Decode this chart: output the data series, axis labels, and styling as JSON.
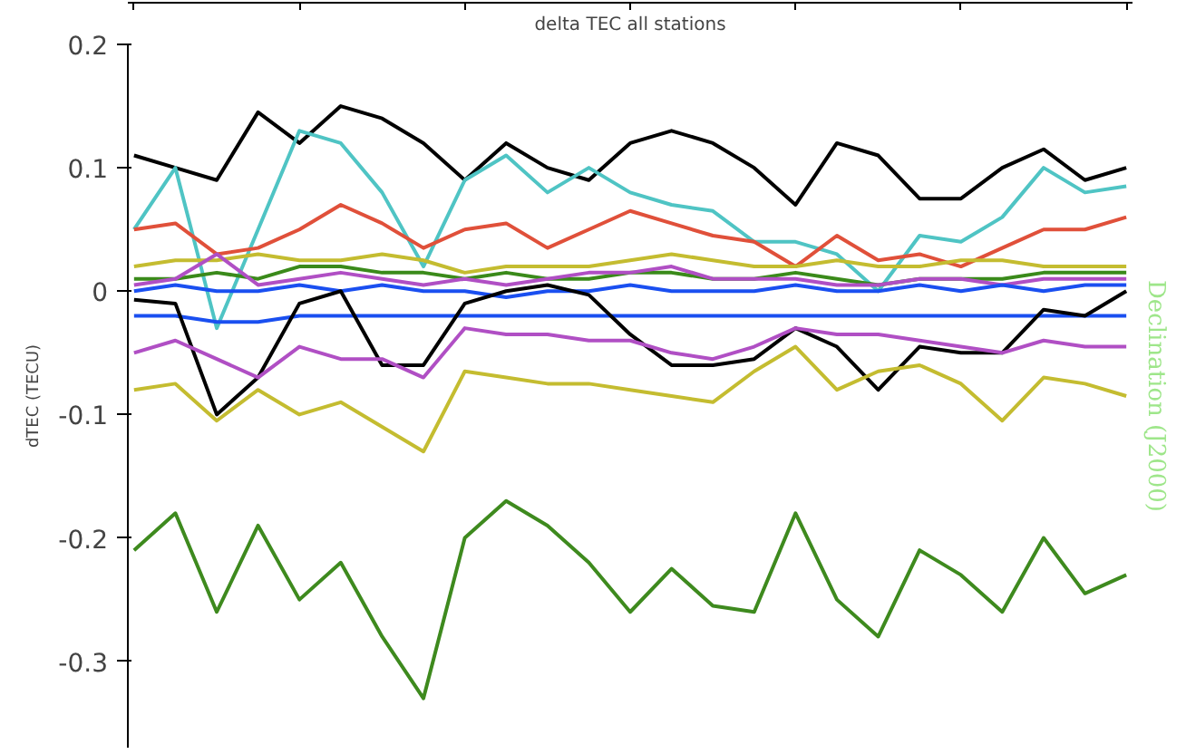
{
  "chart_data": {
    "type": "line",
    "title": "delta TEC all stations",
    "ylabel": "dTEC (TECU)",
    "y2label": "Declination (J2000)",
    "categories": [
      null,
      null,
      null,
      null,
      null,
      null,
      null,
      null,
      null,
      null,
      null,
      null,
      null,
      null,
      null,
      null,
      null,
      null,
      null,
      null,
      null,
      null,
      null,
      null,
      null
    ],
    "series": [
      {
        "color": "#000000",
        "values": [
          0.11,
          0.1,
          0.09,
          0.145,
          0.12,
          0.15,
          0.14,
          0.12,
          0.09,
          0.12,
          0.1,
          0.09,
          0.12,
          0.13,
          0.12,
          0.1,
          0.07,
          0.12,
          0.11,
          0.075,
          0.075,
          0.1,
          0.115,
          0.09,
          0.1
        ]
      },
      {
        "color": "#4fc4c4",
        "values": [
          0.05,
          0.1,
          -0.03,
          0.05,
          0.13,
          0.12,
          0.08,
          0.02,
          0.09,
          0.11,
          0.08,
          0.1,
          0.08,
          0.07,
          0.065,
          0.04,
          0.04,
          0.03,
          0.0,
          0.045,
          0.04,
          0.06,
          0.1,
          0.08,
          0.085
        ]
      },
      {
        "color": "#e0503a",
        "values": [
          0.05,
          0.055,
          0.03,
          0.035,
          0.05,
          0.07,
          0.055,
          0.035,
          0.05,
          0.055,
          0.035,
          0.05,
          0.065,
          0.055,
          0.045,
          0.04,
          0.02,
          0.045,
          0.025,
          0.03,
          0.02,
          0.035,
          0.05,
          0.05,
          0.06
        ]
      },
      {
        "color": "#c4bc30",
        "values": [
          0.02,
          0.025,
          0.025,
          0.03,
          0.025,
          0.025,
          0.03,
          0.025,
          0.015,
          0.02,
          0.02,
          0.02,
          0.025,
          0.03,
          0.025,
          0.02,
          0.02,
          0.025,
          0.02,
          0.02,
          0.025,
          0.025,
          0.02,
          0.02,
          0.02
        ]
      },
      {
        "color": "#3a8a1a",
        "values": [
          0.01,
          0.01,
          0.015,
          0.01,
          0.02,
          0.02,
          0.015,
          0.015,
          0.01,
          0.015,
          0.01,
          0.01,
          0.015,
          0.015,
          0.01,
          0.01,
          0.015,
          0.01,
          0.005,
          0.01,
          0.01,
          0.01,
          0.015,
          0.015,
          0.015
        ]
      },
      {
        "color": "#b04fc4",
        "values": [
          0.005,
          0.01,
          0.03,
          0.005,
          0.01,
          0.015,
          0.01,
          0.005,
          0.01,
          0.005,
          0.01,
          0.015,
          0.015,
          0.02,
          0.01,
          0.01,
          0.01,
          0.005,
          0.005,
          0.01,
          0.01,
          0.005,
          0.01,
          0.01,
          0.01
        ]
      },
      {
        "color": "#1a4ff0",
        "values": [
          0.0,
          0.005,
          0.0,
          0.0,
          0.005,
          0.0,
          0.005,
          0.0,
          0.0,
          -0.005,
          0.0,
          0.0,
          0.005,
          0.0,
          0.0,
          0.0,
          0.005,
          0.0,
          0.0,
          0.005,
          0.0,
          0.005,
          0.0,
          0.005,
          0.005
        ]
      },
      {
        "color": "#1a4ff0",
        "values": [
          -0.02,
          -0.02,
          -0.025,
          -0.025,
          -0.02,
          -0.02,
          -0.02,
          -0.02,
          -0.02,
          -0.02,
          -0.02,
          -0.02,
          -0.02,
          -0.02,
          -0.02,
          -0.02,
          -0.02,
          -0.02,
          -0.02,
          -0.02,
          -0.02,
          -0.02,
          -0.02,
          -0.02,
          -0.02
        ]
      },
      {
        "color": "#000000",
        "values": [
          -0.007,
          -0.01,
          -0.1,
          -0.07,
          -0.01,
          0.0,
          -0.06,
          -0.06,
          -0.01,
          0.0,
          0.005,
          -0.003,
          -0.035,
          -0.06,
          -0.06,
          -0.055,
          -0.03,
          -0.045,
          -0.08,
          -0.045,
          -0.05,
          -0.05,
          -0.015,
          -0.02,
          0.0
        ]
      },
      {
        "color": "#b04fc4",
        "values": [
          -0.05,
          -0.04,
          -0.055,
          -0.07,
          -0.045,
          -0.055,
          -0.055,
          -0.07,
          -0.03,
          -0.035,
          -0.035,
          -0.04,
          -0.04,
          -0.05,
          -0.055,
          -0.045,
          -0.03,
          -0.035,
          -0.035,
          -0.04,
          -0.045,
          -0.05,
          -0.04,
          -0.045,
          -0.045
        ]
      },
      {
        "color": "#c4bc30",
        "values": [
          -0.08,
          -0.075,
          -0.105,
          -0.08,
          -0.1,
          -0.09,
          -0.11,
          -0.13,
          -0.065,
          -0.07,
          -0.075,
          -0.075,
          -0.08,
          -0.085,
          -0.09,
          -0.065,
          -0.045,
          -0.08,
          -0.065,
          -0.06,
          -0.075,
          -0.105,
          -0.07,
          -0.075,
          -0.085
        ]
      },
      {
        "color": "#3e8a1e",
        "values": [
          -0.21,
          -0.18,
          -0.26,
          -0.19,
          -0.25,
          -0.22,
          -0.28,
          -0.33,
          -0.2,
          -0.17,
          -0.19,
          -0.22,
          -0.26,
          -0.225,
          -0.255,
          -0.26,
          -0.18,
          -0.25,
          -0.28,
          -0.21,
          -0.23,
          -0.26,
          -0.2,
          -0.245,
          -0.23
        ]
      }
    ],
    "ylim": [
      -0.37,
      0.2
    ],
    "yticks": [
      0.2,
      0.1,
      0,
      -0.1,
      -0.2,
      -0.3
    ],
    "tick_labels": "y",
    "grid": false,
    "marker": "none",
    "line_style": "solid"
  }
}
